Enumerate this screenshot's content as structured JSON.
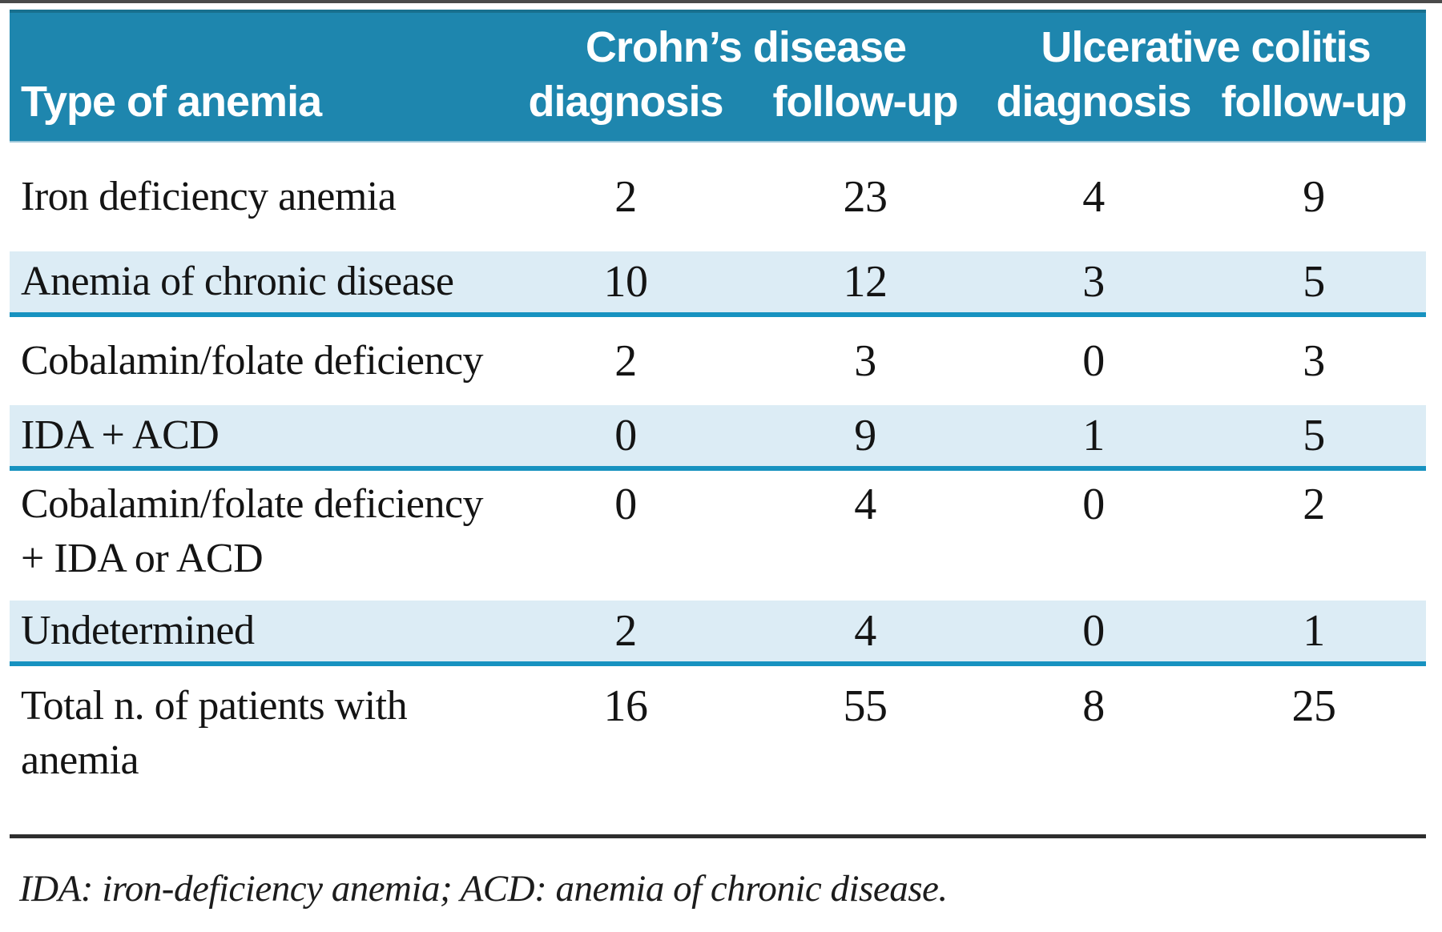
{
  "table": {
    "header": {
      "row_label": "Type of anemia",
      "group1": "Crohn’s disease",
      "group2": "Ulcerative colitis",
      "sub1": "diagnosis",
      "sub2": "follow-up",
      "sub3": "diagnosis",
      "sub4": "follow-up"
    },
    "rows": [
      {
        "label": "Iron deficiency anemia",
        "values": [
          "2",
          "23",
          "4",
          "9"
        ]
      },
      {
        "label": "Anemia of chronic disease",
        "values": [
          "10",
          "12",
          "3",
          "5"
        ]
      },
      {
        "label": "Cobalamin/folate deficiency",
        "values": [
          "2",
          "3",
          "0",
          "3"
        ]
      },
      {
        "label": "IDA + ACD",
        "values": [
          "0",
          "9",
          "1",
          "5"
        ]
      },
      {
        "label": "Cobalamin/folate deficiency + IDA or ACD",
        "values": [
          "0",
          "4",
          "0",
          "2"
        ]
      },
      {
        "label": "Undetermined",
        "values": [
          "2",
          "4",
          "0",
          "1"
        ]
      },
      {
        "label": "Total n. of patients with anemia",
        "values": [
          "16",
          "55",
          "8",
          "25"
        ]
      }
    ],
    "footnote": "IDA: iron-deficiency anemia; ACD: anemia of chronic disease.",
    "colors": {
      "header_bg": "#1e86ae",
      "shaded_row_bg": "#dcecf5",
      "row_separator": "#1792c0",
      "bottom_rule": "#2e2e2e",
      "header_text": "#ffffff",
      "body_text": "#141414"
    }
  }
}
